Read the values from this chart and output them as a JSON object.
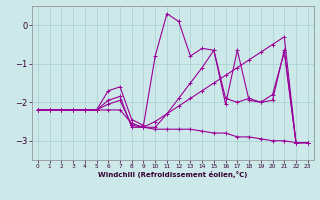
{
  "xlabel": "Windchill (Refroidissement éolien,°C)",
  "ylabel": "",
  "background_color": "#cde8e8",
  "line_color": "#990099",
  "grid_color": "#aad4d4",
  "xlim": [
    -0.5,
    23.5
  ],
  "ylim": [
    -3.5,
    0.5
  ],
  "yticks": [
    0,
    -1,
    -2,
    -3
  ],
  "xticks": [
    0,
    1,
    2,
    3,
    4,
    5,
    6,
    7,
    8,
    9,
    10,
    11,
    12,
    13,
    14,
    15,
    16,
    17,
    18,
    19,
    20,
    21,
    22,
    23
  ],
  "series": [
    {
      "x": [
        0,
        1,
        2,
        3,
        4,
        5,
        6,
        7,
        8,
        9,
        10,
        11,
        12,
        13,
        14,
        15,
        16,
        17,
        18,
        19,
        20,
        21,
        22,
        23
      ],
      "y": [
        -2.2,
        -2.2,
        -2.2,
        -2.2,
        -2.2,
        -2.2,
        -1.7,
        -1.6,
        -2.45,
        -2.6,
        -0.8,
        0.3,
        0.1,
        -0.8,
        -0.6,
        -0.65,
        -2.05,
        -0.65,
        -1.95,
        -2.0,
        -1.8,
        -0.7,
        -3.05,
        -3.05
      ]
    },
    {
      "x": [
        0,
        1,
        2,
        3,
        4,
        5,
        6,
        7,
        8,
        9,
        10,
        11,
        12,
        13,
        14,
        15,
        16,
        17,
        18,
        19,
        20,
        21,
        22,
        23
      ],
      "y": [
        -2.2,
        -2.2,
        -2.2,
        -2.2,
        -2.2,
        -2.2,
        -2.05,
        -1.95,
        -2.6,
        -2.65,
        -2.5,
        -2.3,
        -2.1,
        -1.9,
        -1.7,
        -1.5,
        -1.3,
        -1.1,
        -0.9,
        -0.7,
        -0.5,
        -0.3,
        -3.05,
        -3.05
      ]
    },
    {
      "x": [
        0,
        1,
        2,
        3,
        4,
        5,
        6,
        7,
        8,
        9,
        10,
        11,
        12,
        13,
        14,
        15,
        16,
        17,
        18,
        19,
        20,
        21,
        22,
        23
      ],
      "y": [
        -2.2,
        -2.2,
        -2.2,
        -2.2,
        -2.2,
        -2.2,
        -2.2,
        -2.2,
        -2.55,
        -2.65,
        -2.7,
        -2.7,
        -2.7,
        -2.7,
        -2.75,
        -2.8,
        -2.8,
        -2.9,
        -2.9,
        -2.95,
        -3.0,
        -3.0,
        -3.05,
        -3.05
      ]
    },
    {
      "x": [
        0,
        1,
        2,
        3,
        4,
        5,
        6,
        7,
        8,
        9,
        10,
        11,
        12,
        13,
        14,
        15,
        16,
        17,
        18,
        19,
        20,
        21,
        22,
        23
      ],
      "y": [
        -2.2,
        -2.2,
        -2.2,
        -2.2,
        -2.2,
        -2.2,
        -1.95,
        -1.85,
        -2.65,
        -2.65,
        -2.65,
        -2.3,
        -1.9,
        -1.5,
        -1.1,
        -0.65,
        -1.9,
        -2.0,
        -1.9,
        -2.0,
        -1.95,
        -0.65,
        -3.05,
        -3.05
      ]
    }
  ]
}
